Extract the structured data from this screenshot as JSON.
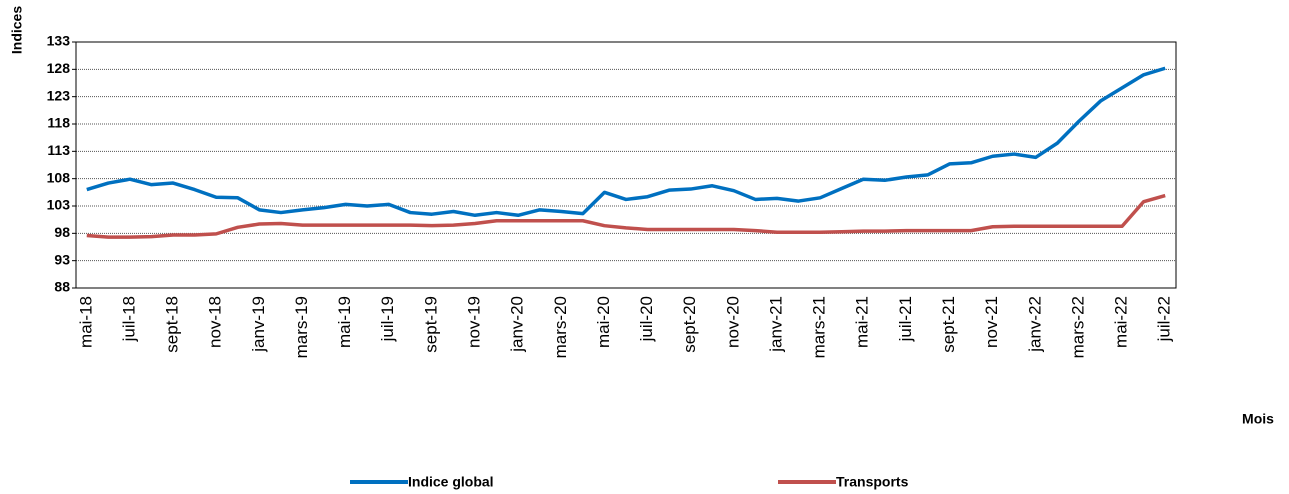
{
  "chart_data": {
    "type": "line",
    "y_axis_label": "Indices",
    "x_axis_label": "Mois",
    "categories": [
      "mai-18",
      null,
      "juil-18",
      null,
      "sept-18",
      null,
      "nov-18",
      null,
      "janv-19",
      null,
      "mars-19",
      null,
      "mai-19",
      null,
      "juil-19",
      null,
      "sept-19",
      null,
      "nov-19",
      null,
      "janv-20",
      null,
      "mars-20",
      null,
      "mai-20",
      null,
      "juil-20",
      null,
      "sept-20",
      null,
      "nov-20",
      null,
      "janv-21",
      null,
      "mars-21",
      null,
      "mai-21",
      null,
      "juil-21",
      null,
      "sept-21",
      null,
      "nov-21",
      null,
      "janv-22",
      null,
      "mars-22",
      null,
      "mai-22",
      null,
      "juil-22"
    ],
    "series": [
      {
        "name": "Indice global",
        "color": "#0070c0",
        "values": [
          106,
          107.2,
          107.9,
          106.9,
          107.2,
          106,
          104.6,
          104.5,
          102.3,
          101.8,
          102.3,
          102.7,
          103.3,
          103,
          103.3,
          101.8,
          101.5,
          102,
          101.3,
          101.8,
          101.3,
          102.3,
          102,
          101.6,
          105.5,
          104.2,
          104.7,
          105.9,
          106.1,
          106.7,
          105.8,
          104.2,
          104.4,
          103.9,
          104.5,
          106.2,
          107.9,
          107.7,
          108.3,
          108.7,
          110.7,
          110.9,
          112.1,
          112.5,
          111.9,
          114.5,
          118.5,
          122.2,
          124.6,
          127,
          128.2
        ]
      },
      {
        "name": "Transports",
        "color": "#c0504d",
        "values": [
          97.6,
          97.3,
          97.3,
          97.4,
          97.7,
          97.7,
          97.9,
          99.1,
          99.7,
          99.8,
          99.5,
          99.5,
          99.5,
          99.5,
          99.5,
          99.5,
          99.4,
          99.5,
          99.8,
          100.3,
          100.3,
          100.3,
          100.3,
          100.3,
          99.4,
          99,
          98.7,
          98.7,
          98.7,
          98.7,
          98.7,
          98.5,
          98.2,
          98.2,
          98.2,
          98.3,
          98.4,
          98.4,
          98.5,
          98.5,
          98.5,
          98.5,
          99.2,
          99.3,
          99.3,
          99.3,
          99.3,
          99.3,
          99.3,
          103.8,
          104.9
        ]
      }
    ],
    "ylim": [
      88,
      133
    ],
    "yticks": [
      88,
      93,
      98,
      103,
      108,
      113,
      118,
      123,
      128,
      133
    ],
    "grid": true
  }
}
